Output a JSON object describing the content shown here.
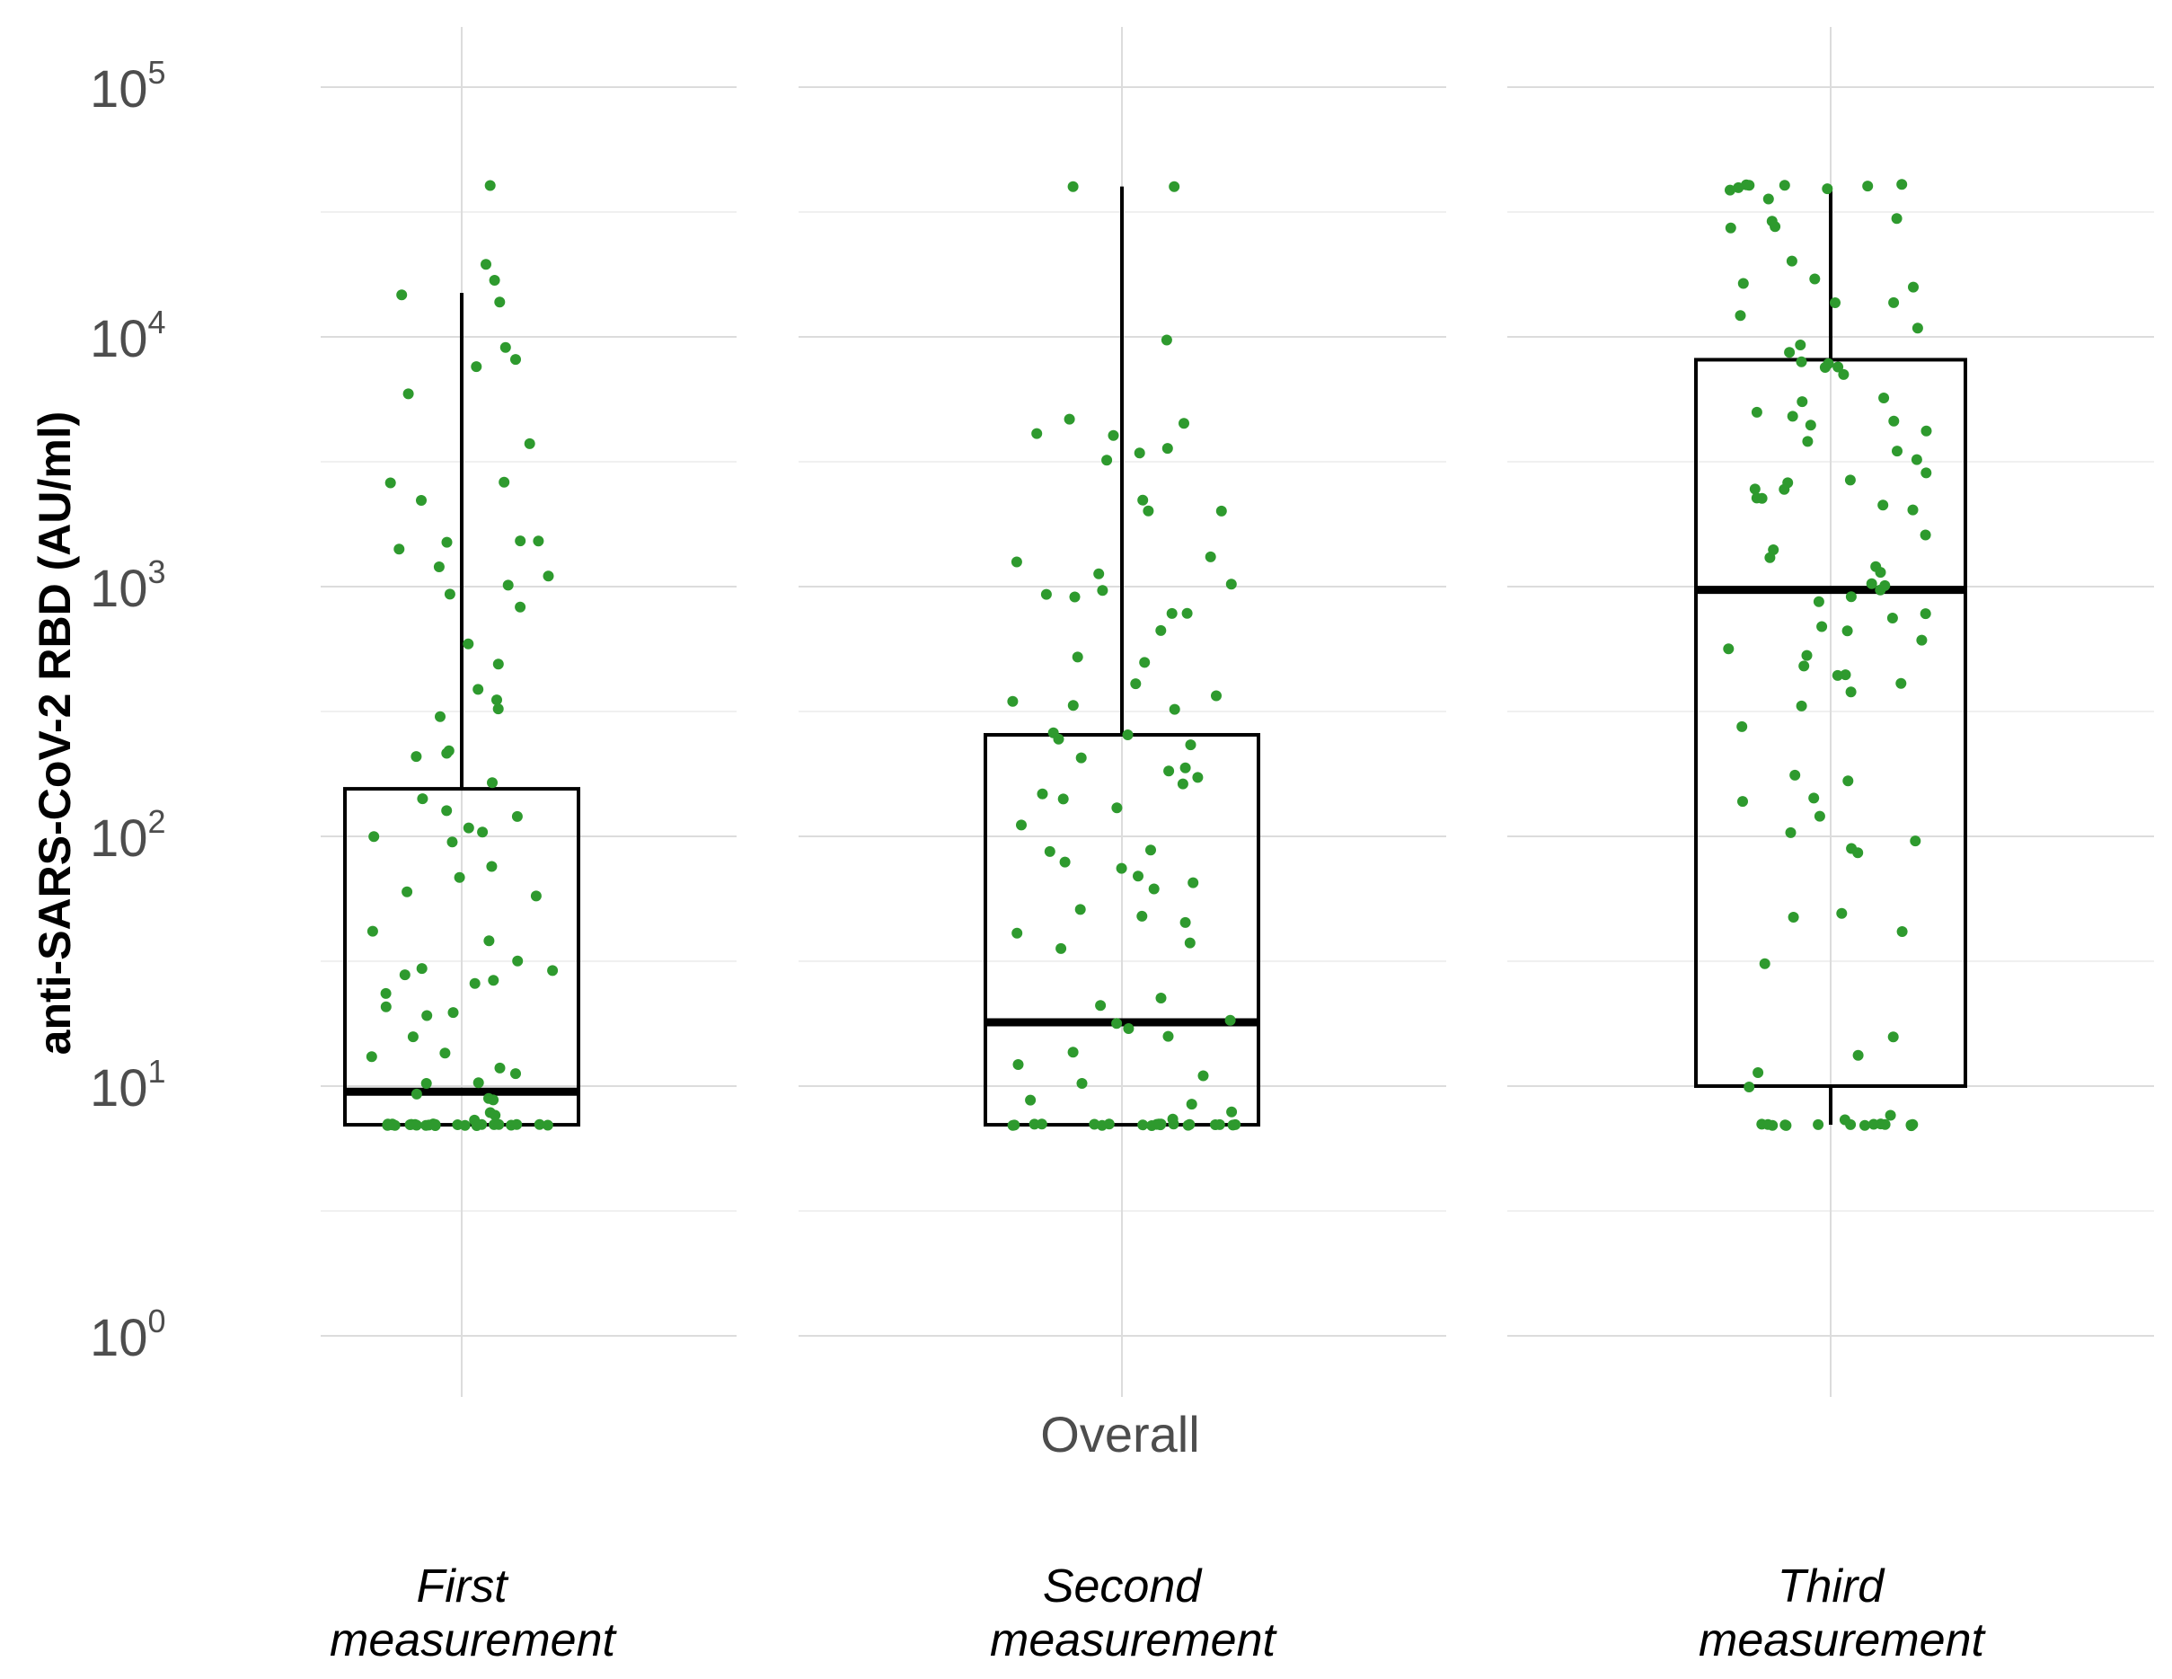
{
  "chart_data": {
    "type": "boxplot",
    "ylabel": "anti-SARS-CoV-2 RBD (AU/ml)",
    "xlabel": "",
    "strip_label": "Overall",
    "y_scale": "log10",
    "ylim": [
      0.6,
      150000
    ],
    "y_ticks": [
      {
        "base": "10",
        "exp": "0",
        "value": 1
      },
      {
        "base": "10",
        "exp": "1",
        "value": 10
      },
      {
        "base": "10",
        "exp": "2",
        "value": 100
      },
      {
        "base": "10",
        "exp": "3",
        "value": 1000
      },
      {
        "base": "10",
        "exp": "4",
        "value": 10000
      },
      {
        "base": "10",
        "exp": "5",
        "value": 100000
      }
    ],
    "point_color": "#2e9a2e",
    "box_color": "#000000",
    "groups": [
      {
        "line1": "First",
        "line2": "measurement",
        "box": {
          "whisker_low": 7,
          "q1": 7,
          "median": 9.5,
          "q3": 155,
          "whisker_high": 15000
        },
        "points": [
          40000,
          20000,
          17000,
          15000,
          14000,
          9000,
          8000,
          7500,
          6000,
          3800,
          2600,
          2600,
          2200,
          1550,
          1500,
          1500,
          1400,
          1200,
          1100,
          1000,
          950,
          820,
          600,
          480,
          380,
          350,
          320,
          300,
          220,
          215,
          205,
          160,
          140,
          125,
          120,
          110,
          105,
          100,
          95,
          75,
          70,
          60,
          58,
          42,
          38,
          32,
          30,
          29,
          28,
          27,
          26,
          24,
          20.5,
          20,
          19.5,
          16,
          13.5,
          13,
          12,
          11.5,
          10.5,
          10,
          9.3,
          9,
          8.8,
          8,
          7.5,
          7.2,
          7,
          7,
          7,
          7,
          7,
          7,
          7,
          7,
          7,
          7,
          7,
          7,
          7,
          7,
          7,
          7,
          7,
          7,
          7,
          7,
          7,
          7,
          7,
          7
        ]
      },
      {
        "line1": "Second",
        "line2": "measurement",
        "box": {
          "whisker_low": 7,
          "q1": 7,
          "median": 18,
          "q3": 255,
          "whisker_high": 40000
        },
        "points": [
          40000,
          40000,
          9800,
          4600,
          4400,
          4100,
          4000,
          3600,
          3400,
          3200,
          2200,
          2050,
          2000,
          1300,
          1250,
          1150,
          1000,
          960,
          950,
          930,
          800,
          780,
          680,
          530,
          500,
          400,
          370,
          350,
          340,
          330,
          260,
          255,
          250,
          230,
          210,
          190,
          180,
          175,
          160,
          145,
          140,
          130,
          110,
          90,
          85,
          80,
          75,
          68,
          65,
          62,
          50,
          48,
          45,
          42,
          38,
          35,
          23,
          21,
          18.5,
          18,
          17,
          16,
          13.5,
          12,
          11,
          10,
          9,
          8.5,
          8,
          7.5,
          7,
          7,
          7,
          7,
          7,
          7,
          7,
          7,
          7,
          7,
          7,
          7,
          7,
          7,
          7,
          7,
          7,
          7,
          7,
          7
        ]
      },
      {
        "line1": "Third",
        "line2": "measurement",
        "box": {
          "whisker_low": 7,
          "q1": 10,
          "median": 970,
          "q3": 8100,
          "whisker_high": 40000
        },
        "points": [
          40000,
          40000,
          40000,
          40000,
          40000,
          40000,
          40000,
          38000,
          36000,
          30000,
          29000,
          28000,
          27000,
          20000,
          17000,
          16000,
          15500,
          14000,
          13500,
          12000,
          11000,
          9500,
          8500,
          8000,
          7800,
          7600,
          7400,
          7200,
          5800,
          5500,
          5000,
          4800,
          4600,
          4500,
          4200,
          3800,
          3500,
          3300,
          2800,
          2700,
          2600,
          2500,
          2400,
          2300,
          2200,
          2100,
          2000,
          1600,
          1400,
          1300,
          1200,
          1150,
          1050,
          1000,
          950,
          900,
          850,
          780,
          760,
          700,
          650,
          600,
          560,
          520,
          480,
          450,
          430,
          400,
          370,
          330,
          270,
          180,
          170,
          145,
          140,
          120,
          105,
          95,
          88,
          86,
          48,
          47,
          41,
          31,
          16,
          13.5,
          11.5,
          10,
          7.5,
          7.3,
          7,
          7,
          7,
          7,
          7,
          7,
          7,
          7,
          7,
          7,
          7,
          7,
          7,
          7
        ]
      }
    ]
  }
}
